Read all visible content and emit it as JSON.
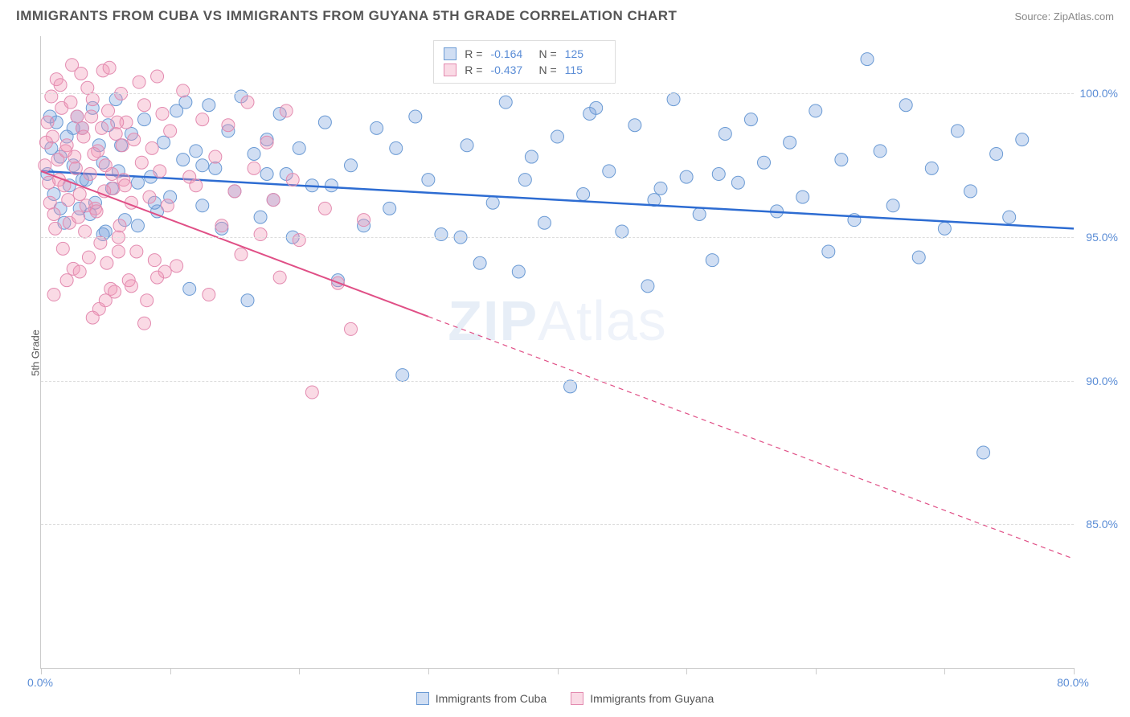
{
  "header": {
    "title": "IMMIGRANTS FROM CUBA VS IMMIGRANTS FROM GUYANA 5TH GRADE CORRELATION CHART",
    "source": "Source: ZipAtlas.com"
  },
  "watermark": {
    "bold": "ZIP",
    "light": "Atlas"
  },
  "chart": {
    "type": "scatter",
    "ylabel": "5th Grade",
    "xlim": [
      0,
      80
    ],
    "ylim": [
      80,
      102
    ],
    "xtick_positions": [
      0,
      10,
      20,
      30,
      40,
      50,
      60,
      70,
      80
    ],
    "xtick_labels": {
      "0": "0.0%",
      "80": "80.0%"
    },
    "ytick_positions": [
      85,
      90,
      95,
      100
    ],
    "ytick_labels": {
      "85": "85.0%",
      "90": "90.0%",
      "95": "95.0%",
      "100": "100.0%"
    },
    "background_color": "#ffffff",
    "grid_color": "#dddddd",
    "axis_color": "#cccccc",
    "tick_label_color": "#5b8dd6",
    "series": [
      {
        "name": "Immigrants from Cuba",
        "fill": "rgba(120,160,220,0.35)",
        "stroke": "#6a9ad4",
        "line_color": "#2d6cd2",
        "line_width": 2.5,
        "line_dash": "none",
        "r": -0.164,
        "n": 125,
        "trend": {
          "x1": 0,
          "y1": 97.3,
          "x2": 80,
          "y2": 95.3
        },
        "points": [
          [
            0.5,
            97.2
          ],
          [
            0.8,
            98.1
          ],
          [
            1.0,
            96.5
          ],
          [
            1.2,
            99.0
          ],
          [
            1.5,
            97.8
          ],
          [
            1.8,
            95.5
          ],
          [
            2.0,
            98.5
          ],
          [
            2.2,
            96.8
          ],
          [
            2.5,
            97.5
          ],
          [
            2.8,
            99.2
          ],
          [
            3.0,
            96.0
          ],
          [
            3.2,
            98.8
          ],
          [
            3.5,
            97.0
          ],
          [
            3.8,
            95.8
          ],
          [
            4.0,
            99.5
          ],
          [
            4.2,
            96.2
          ],
          [
            4.5,
            98.2
          ],
          [
            4.8,
            97.6
          ],
          [
            5.0,
            95.2
          ],
          [
            5.2,
            98.9
          ],
          [
            5.5,
            96.7
          ],
          [
            5.8,
            99.8
          ],
          [
            6.0,
            97.3
          ],
          [
            6.5,
            95.6
          ],
          [
            7.0,
            98.6
          ],
          [
            7.5,
            96.9
          ],
          [
            8.0,
            99.1
          ],
          [
            8.5,
            97.1
          ],
          [
            9.0,
            95.9
          ],
          [
            9.5,
            98.3
          ],
          [
            10.0,
            96.4
          ],
          [
            10.5,
            99.4
          ],
          [
            11.0,
            97.7
          ],
          [
            11.5,
            93.2
          ],
          [
            12.0,
            98.0
          ],
          [
            12.5,
            96.1
          ],
          [
            13.0,
            99.6
          ],
          [
            13.5,
            97.4
          ],
          [
            14.0,
            95.3
          ],
          [
            14.5,
            98.7
          ],
          [
            15.0,
            96.6
          ],
          [
            15.5,
            99.9
          ],
          [
            16.0,
            92.8
          ],
          [
            16.5,
            97.9
          ],
          [
            17.0,
            95.7
          ],
          [
            17.5,
            98.4
          ],
          [
            18.0,
            96.3
          ],
          [
            18.5,
            99.3
          ],
          [
            19.0,
            97.2
          ],
          [
            19.5,
            95.0
          ],
          [
            20.0,
            98.1
          ],
          [
            21.0,
            96.8
          ],
          [
            22.0,
            99.0
          ],
          [
            23.0,
            93.5
          ],
          [
            24.0,
            97.5
          ],
          [
            25.0,
            95.4
          ],
          [
            26.0,
            98.8
          ],
          [
            27.0,
            96.0
          ],
          [
            28.0,
            90.2
          ],
          [
            29.0,
            99.2
          ],
          [
            30.0,
            97.0
          ],
          [
            31.0,
            95.1
          ],
          [
            32.0,
            101.0
          ],
          [
            33.0,
            98.2
          ],
          [
            34.0,
            94.1
          ],
          [
            35.0,
            96.2
          ],
          [
            36.0,
            99.7
          ],
          [
            37.0,
            93.8
          ],
          [
            38.0,
            97.8
          ],
          [
            39.0,
            95.5
          ],
          [
            40.0,
            98.5
          ],
          [
            41.0,
            89.8
          ],
          [
            42.0,
            96.5
          ],
          [
            43.0,
            99.5
          ],
          [
            44.0,
            97.3
          ],
          [
            45.0,
            95.2
          ],
          [
            46.0,
            98.9
          ],
          [
            47.0,
            93.3
          ],
          [
            48.0,
            96.7
          ],
          [
            49.0,
            99.8
          ],
          [
            50.0,
            97.1
          ],
          [
            51.0,
            95.8
          ],
          [
            52.0,
            94.2
          ],
          [
            53.0,
            98.6
          ],
          [
            54.0,
            96.9
          ],
          [
            55.0,
            99.1
          ],
          [
            56.0,
            97.6
          ],
          [
            57.0,
            95.9
          ],
          [
            58.0,
            98.3
          ],
          [
            59.0,
            96.4
          ],
          [
            60.0,
            99.4
          ],
          [
            61.0,
            94.5
          ],
          [
            62.0,
            97.7
          ],
          [
            63.0,
            95.6
          ],
          [
            64.0,
            101.2
          ],
          [
            65.0,
            98.0
          ],
          [
            66.0,
            96.1
          ],
          [
            67.0,
            99.6
          ],
          [
            68.0,
            94.3
          ],
          [
            69.0,
            97.4
          ],
          [
            70.0,
            95.3
          ],
          [
            71.0,
            98.7
          ],
          [
            72.0,
            96.6
          ],
          [
            73.0,
            87.5
          ],
          [
            74.0,
            97.9
          ],
          [
            75.0,
            95.7
          ],
          [
            76.0,
            98.4
          ],
          [
            52.5,
            97.2
          ],
          [
            47.5,
            96.3
          ],
          [
            42.5,
            99.3
          ],
          [
            37.5,
            97.0
          ],
          [
            32.5,
            95.0
          ],
          [
            27.5,
            98.1
          ],
          [
            22.5,
            96.8
          ],
          [
            17.5,
            97.2
          ],
          [
            12.5,
            97.5
          ],
          [
            7.5,
            95.4
          ],
          [
            2.5,
            98.8
          ],
          [
            1.5,
            96.0
          ],
          [
            0.7,
            99.2
          ],
          [
            3.2,
            97.0
          ],
          [
            4.8,
            95.1
          ],
          [
            6.2,
            98.2
          ],
          [
            8.8,
            96.2
          ],
          [
            11.2,
            99.7
          ]
        ]
      },
      {
        "name": "Immigrants from Guyana",
        "fill": "rgba(240,150,180,0.35)",
        "stroke": "#e38bb0",
        "line_color": "#e04f86",
        "line_width": 2,
        "line_dash": "6,5",
        "r": -0.437,
        "n": 115,
        "trend": {
          "x1": 0,
          "y1": 97.3,
          "x2": 80,
          "y2": 83.8
        },
        "trend_solid_until": 30,
        "points": [
          [
            0.3,
            97.5
          ],
          [
            0.5,
            99.0
          ],
          [
            0.7,
            96.2
          ],
          [
            0.9,
            98.5
          ],
          [
            1.0,
            95.8
          ],
          [
            1.2,
            100.5
          ],
          [
            1.4,
            97.0
          ],
          [
            1.6,
            99.5
          ],
          [
            1.8,
            96.8
          ],
          [
            2.0,
            98.2
          ],
          [
            2.2,
            95.5
          ],
          [
            2.4,
            101.0
          ],
          [
            2.6,
            97.8
          ],
          [
            2.8,
            99.2
          ],
          [
            3.0,
            96.5
          ],
          [
            3.2,
            98.8
          ],
          [
            3.4,
            95.2
          ],
          [
            3.6,
            100.2
          ],
          [
            3.8,
            97.2
          ],
          [
            4.0,
            99.8
          ],
          [
            4.2,
            96.0
          ],
          [
            4.4,
            98.0
          ],
          [
            4.6,
            94.8
          ],
          [
            4.8,
            100.8
          ],
          [
            5.0,
            97.5
          ],
          [
            5.2,
            99.4
          ],
          [
            5.4,
            93.2
          ],
          [
            5.6,
            96.7
          ],
          [
            5.8,
            98.6
          ],
          [
            6.0,
            95.0
          ],
          [
            6.2,
            100.0
          ],
          [
            6.4,
            97.0
          ],
          [
            6.6,
            99.0
          ],
          [
            6.8,
            93.5
          ],
          [
            7.0,
            96.2
          ],
          [
            7.2,
            98.4
          ],
          [
            7.4,
            94.5
          ],
          [
            7.6,
            100.4
          ],
          [
            7.8,
            97.6
          ],
          [
            8.0,
            99.6
          ],
          [
            8.2,
            92.8
          ],
          [
            8.4,
            96.4
          ],
          [
            8.6,
            98.1
          ],
          [
            8.8,
            94.2
          ],
          [
            9.0,
            100.6
          ],
          [
            9.2,
            97.3
          ],
          [
            9.4,
            99.3
          ],
          [
            9.6,
            93.8
          ],
          [
            9.8,
            96.1
          ],
          [
            10.0,
            98.7
          ],
          [
            10.5,
            94.0
          ],
          [
            11.0,
            100.1
          ],
          [
            11.5,
            97.1
          ],
          [
            12.0,
            96.8
          ],
          [
            12.5,
            99.1
          ],
          [
            13.0,
            93.0
          ],
          [
            13.5,
            97.8
          ],
          [
            14.0,
            95.4
          ],
          [
            14.5,
            98.9
          ],
          [
            15.0,
            96.6
          ],
          [
            15.5,
            94.4
          ],
          [
            16.0,
            99.7
          ],
          [
            16.5,
            97.4
          ],
          [
            17.0,
            95.1
          ],
          [
            17.5,
            98.3
          ],
          [
            18.0,
            96.3
          ],
          [
            18.5,
            93.6
          ],
          [
            19.0,
            99.4
          ],
          [
            19.5,
            97.0
          ],
          [
            20.0,
            94.9
          ],
          [
            21.0,
            89.6
          ],
          [
            22.0,
            96.0
          ],
          [
            23.0,
            93.4
          ],
          [
            24.0,
            91.8
          ],
          [
            25.0,
            95.6
          ],
          [
            0.4,
            98.3
          ],
          [
            0.6,
            96.9
          ],
          [
            0.8,
            99.9
          ],
          [
            1.1,
            95.3
          ],
          [
            1.3,
            97.7
          ],
          [
            1.5,
            100.3
          ],
          [
            1.7,
            94.6
          ],
          [
            1.9,
            98.0
          ],
          [
            2.1,
            96.3
          ],
          [
            2.3,
            99.7
          ],
          [
            2.5,
            93.9
          ],
          [
            2.7,
            97.4
          ],
          [
            2.9,
            95.7
          ],
          [
            3.1,
            100.7
          ],
          [
            3.3,
            98.5
          ],
          [
            3.5,
            96.1
          ],
          [
            3.7,
            94.3
          ],
          [
            3.9,
            99.2
          ],
          [
            4.1,
            97.9
          ],
          [
            4.3,
            95.9
          ],
          [
            4.5,
            92.5
          ],
          [
            4.7,
            98.8
          ],
          [
            4.9,
            96.6
          ],
          [
            5.1,
            94.1
          ],
          [
            5.3,
            100.9
          ],
          [
            5.5,
            97.2
          ],
          [
            5.7,
            93.1
          ],
          [
            5.9,
            99.0
          ],
          [
            6.1,
            95.4
          ],
          [
            6.3,
            98.2
          ],
          [
            6.5,
            96.8
          ],
          [
            1.0,
            93.0
          ],
          [
            2.0,
            93.5
          ],
          [
            3.0,
            93.8
          ],
          [
            4.0,
            92.2
          ],
          [
            5.0,
            92.8
          ],
          [
            6.0,
            94.5
          ],
          [
            7.0,
            93.3
          ],
          [
            8.0,
            92.0
          ],
          [
            9.0,
            93.6
          ]
        ]
      }
    ],
    "stats_box": {
      "rows": [
        {
          "swatch_fill": "rgba(120,160,220,0.35)",
          "swatch_stroke": "#6a9ad4",
          "r_label": "R =",
          "r_val": "-0.164",
          "n_label": "N =",
          "n_val": "125"
        },
        {
          "swatch_fill": "rgba(240,150,180,0.35)",
          "swatch_stroke": "#e38bb0",
          "r_label": "R =",
          "r_val": "-0.437",
          "n_label": "N =",
          "n_val": "115"
        }
      ]
    },
    "bottom_legend": [
      {
        "swatch_fill": "rgba(120,160,220,0.35)",
        "swatch_stroke": "#6a9ad4",
        "label": "Immigrants from Cuba"
      },
      {
        "swatch_fill": "rgba(240,150,180,0.35)",
        "swatch_stroke": "#e38bb0",
        "label": "Immigrants from Guyana"
      }
    ],
    "marker_radius": 8
  }
}
